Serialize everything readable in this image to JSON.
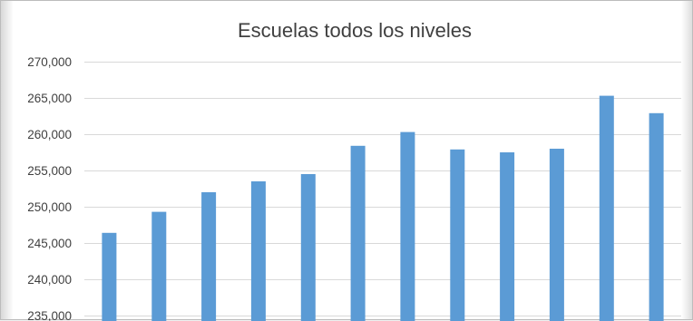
{
  "chart_data": {
    "type": "bar",
    "title": "Escuelas todos los niveles",
    "xlabel": "",
    "ylabel": "",
    "categories": [
      "",
      "",
      "",
      "",
      "",
      "",
      "",
      "",
      "",
      "",
      "",
      ""
    ],
    "values": [
      246400,
      249300,
      252000,
      253500,
      254500,
      258400,
      260300,
      257900,
      257500,
      258000,
      265300,
      262900
    ],
    "ylim": [
      235000,
      270000
    ],
    "yticks": [
      270000,
      265000,
      260000,
      255000,
      250000,
      245000,
      240000,
      235000
    ],
    "ytick_labels": [
      "270,000",
      "265,000",
      "260,000",
      "255,000",
      "250,000",
      "245,000",
      "240,000",
      "235,000"
    ],
    "grid": true,
    "bar_color": "#5b9bd5",
    "legend": false
  }
}
